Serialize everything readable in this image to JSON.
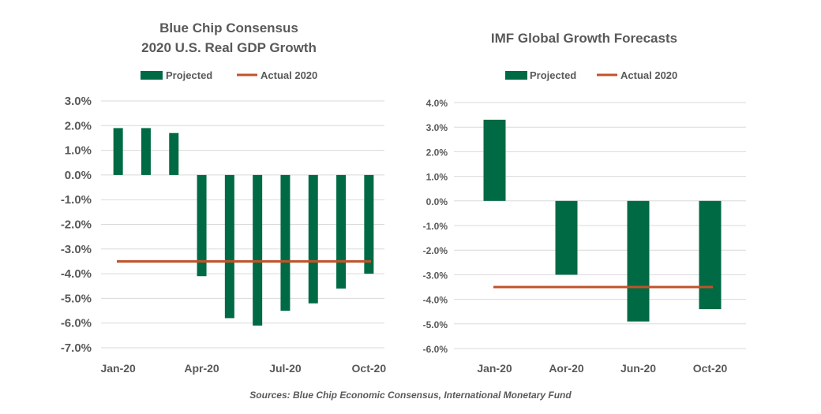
{
  "colors": {
    "projected": "#006a44",
    "actual": "#c0532a",
    "text": "#595959",
    "grid": "#d9d9d9"
  },
  "chart_data": [
    {
      "type": "bar",
      "title": "Blue Chip Consensus",
      "subtitle": "2020 U.S. Real GDP Growth",
      "legend": [
        "Projected",
        "Actual 2020"
      ],
      "legend_placement": "top",
      "x_tick_labels": [
        "Jan-20",
        "Apr-20",
        "Jul-20",
        "Oct-20"
      ],
      "categories": [
        "Jan-20",
        "Feb-20",
        "Mar-20",
        "Apr-20",
        "May-20",
        "Jun-20",
        "Jul-20",
        "Aug-20",
        "Sep-20",
        "Oct-20"
      ],
      "series": [
        {
          "name": "Projected",
          "type": "bar",
          "values": [
            1.9,
            1.9,
            1.7,
            -4.1,
            -5.8,
            -6.1,
            -5.5,
            -5.2,
            -4.6,
            -4.0
          ]
        },
        {
          "name": "Actual 2020",
          "type": "line",
          "values": [
            -3.5,
            -3.5,
            -3.5,
            -3.5,
            -3.5,
            -3.5,
            -3.5,
            -3.5,
            -3.5,
            -3.5
          ]
        }
      ],
      "y_ticks": [
        3,
        2,
        1,
        0,
        -1,
        -2,
        -3,
        -4,
        -5,
        -6,
        -7
      ],
      "y_tick_labels": [
        "3.0%",
        "2.0%",
        "1.0%",
        "0.0%",
        "-1.0%",
        "-2.0%",
        "-3.0%",
        "-4.0%",
        "-5.0%",
        "-6.0%",
        "-7.0%"
      ],
      "ylim": [
        -7,
        3
      ],
      "grid": true
    },
    {
      "type": "bar",
      "title": "IMF Global Growth Forecasts",
      "legend": [
        "Projected",
        "Actual 2020"
      ],
      "legend_placement": "top",
      "x_tick_labels": [
        "Jan-20",
        "Aor-20",
        "Jun-20",
        "Oct-20"
      ],
      "categories": [
        "Jan-20",
        "Aor-20",
        "Jun-20",
        "Oct-20"
      ],
      "series": [
        {
          "name": "Projected",
          "type": "bar",
          "values": [
            3.3,
            -3.0,
            -4.9,
            -4.4
          ]
        },
        {
          "name": "Actual 2020",
          "type": "line",
          "values": [
            -3.5,
            -3.5,
            -3.5,
            -3.5
          ]
        }
      ],
      "y_ticks": [
        4,
        3,
        2,
        1,
        0,
        -1,
        -2,
        -3,
        -4,
        -5,
        -6
      ],
      "y_tick_labels": [
        "4.0%",
        "3.0%",
        "2.0%",
        "1.0%",
        "0.0%",
        "-1.0%",
        "-2.0%",
        "-3.0%",
        "-4.0%",
        "-5.0%",
        "-6.0%"
      ],
      "ylim": [
        -6,
        4
      ],
      "grid": true
    }
  ],
  "source_text": "Sources: Blue Chip Economic Consensus, International Monetary Fund"
}
